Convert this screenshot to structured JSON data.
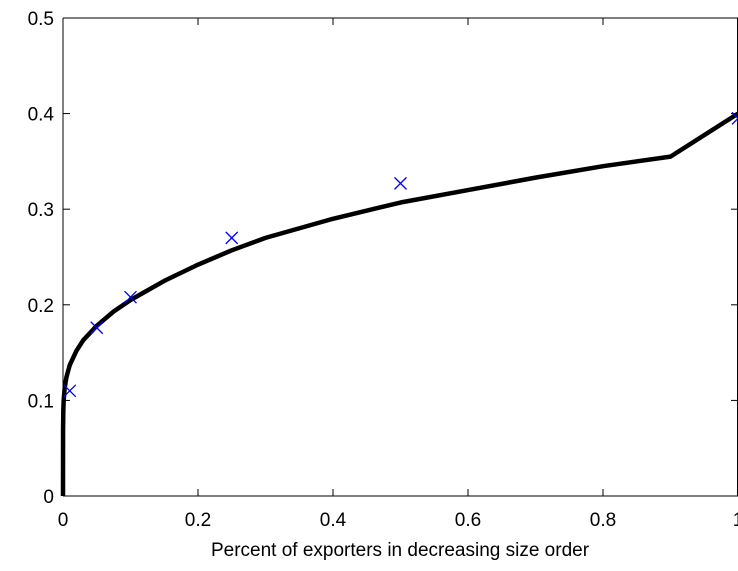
{
  "chart_data": {
    "type": "line",
    "title": "",
    "xlabel": "Percent of exporters in decreasing size order",
    "ylabel": "",
    "xlim": [
      0,
      1
    ],
    "ylim": [
      0,
      0.5
    ],
    "x_ticks": [
      0,
      0.2,
      0.4,
      0.6,
      0.8,
      1
    ],
    "x_tick_labels": [
      "0",
      "0.2",
      "0.4",
      "0.6",
      "0.8",
      "1"
    ],
    "y_ticks": [
      0,
      0.1,
      0.2,
      0.3,
      0.4,
      0.5
    ],
    "y_tick_labels": [
      "0",
      "0.1",
      "0.2",
      "0.3",
      "0.4",
      "0.5"
    ],
    "grid": false,
    "colors": {
      "curve": "#000000",
      "markers": "#0000ff"
    },
    "series": [
      {
        "kind": "line",
        "x": [
          0,
          0.0001,
          0.0005,
          0.001,
          0.0025,
          0.005,
          0.01,
          0.02,
          0.03,
          0.05,
          0.075,
          0.1,
          0.15,
          0.2,
          0.25,
          0.3,
          0.4,
          0.5,
          0.6,
          0.7,
          0.8,
          0.9,
          1
        ],
        "y": [
          0,
          0.07,
          0.09,
          0.1,
          0.113,
          0.124,
          0.137,
          0.152,
          0.163,
          0.178,
          0.193,
          0.205,
          0.225,
          0.242,
          0.257,
          0.27,
          0.29,
          0.307,
          0.32,
          0.333,
          0.345,
          0.355,
          0.4
        ]
      },
      {
        "kind": "scatter",
        "marker": "x",
        "x": [
          0.01,
          0.05,
          0.1,
          0.25,
          0.5,
          1
        ],
        "y": [
          0.11,
          0.176,
          0.208,
          0.27,
          0.327,
          0.395
        ]
      }
    ]
  }
}
